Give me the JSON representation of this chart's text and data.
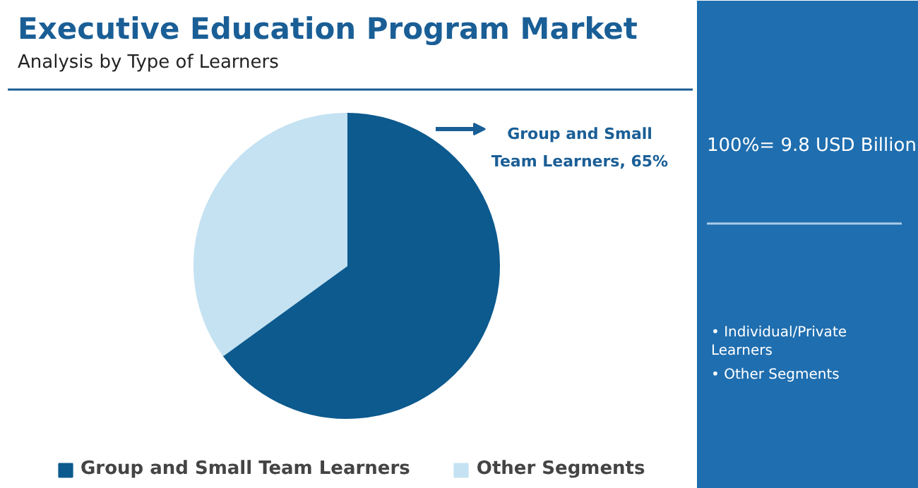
{
  "chart_data": {
    "type": "pie",
    "title": "Executive Education Program Market",
    "subtitle": "Analysis by Type of Learners",
    "categories": [
      "Group and Small Team Learners",
      "Other Segments"
    ],
    "values": [
      65,
      35
    ],
    "colors": [
      "#0d5a8e",
      "#c4e2f2"
    ],
    "value_labels": [
      "Group and Small Team Learners, 65%",
      null
    ],
    "legend": "bottom",
    "annotations": [
      "100%= 9.8 USD Billion",
      "• Individual/Private Learners",
      "• Other Segments"
    ]
  }
}
